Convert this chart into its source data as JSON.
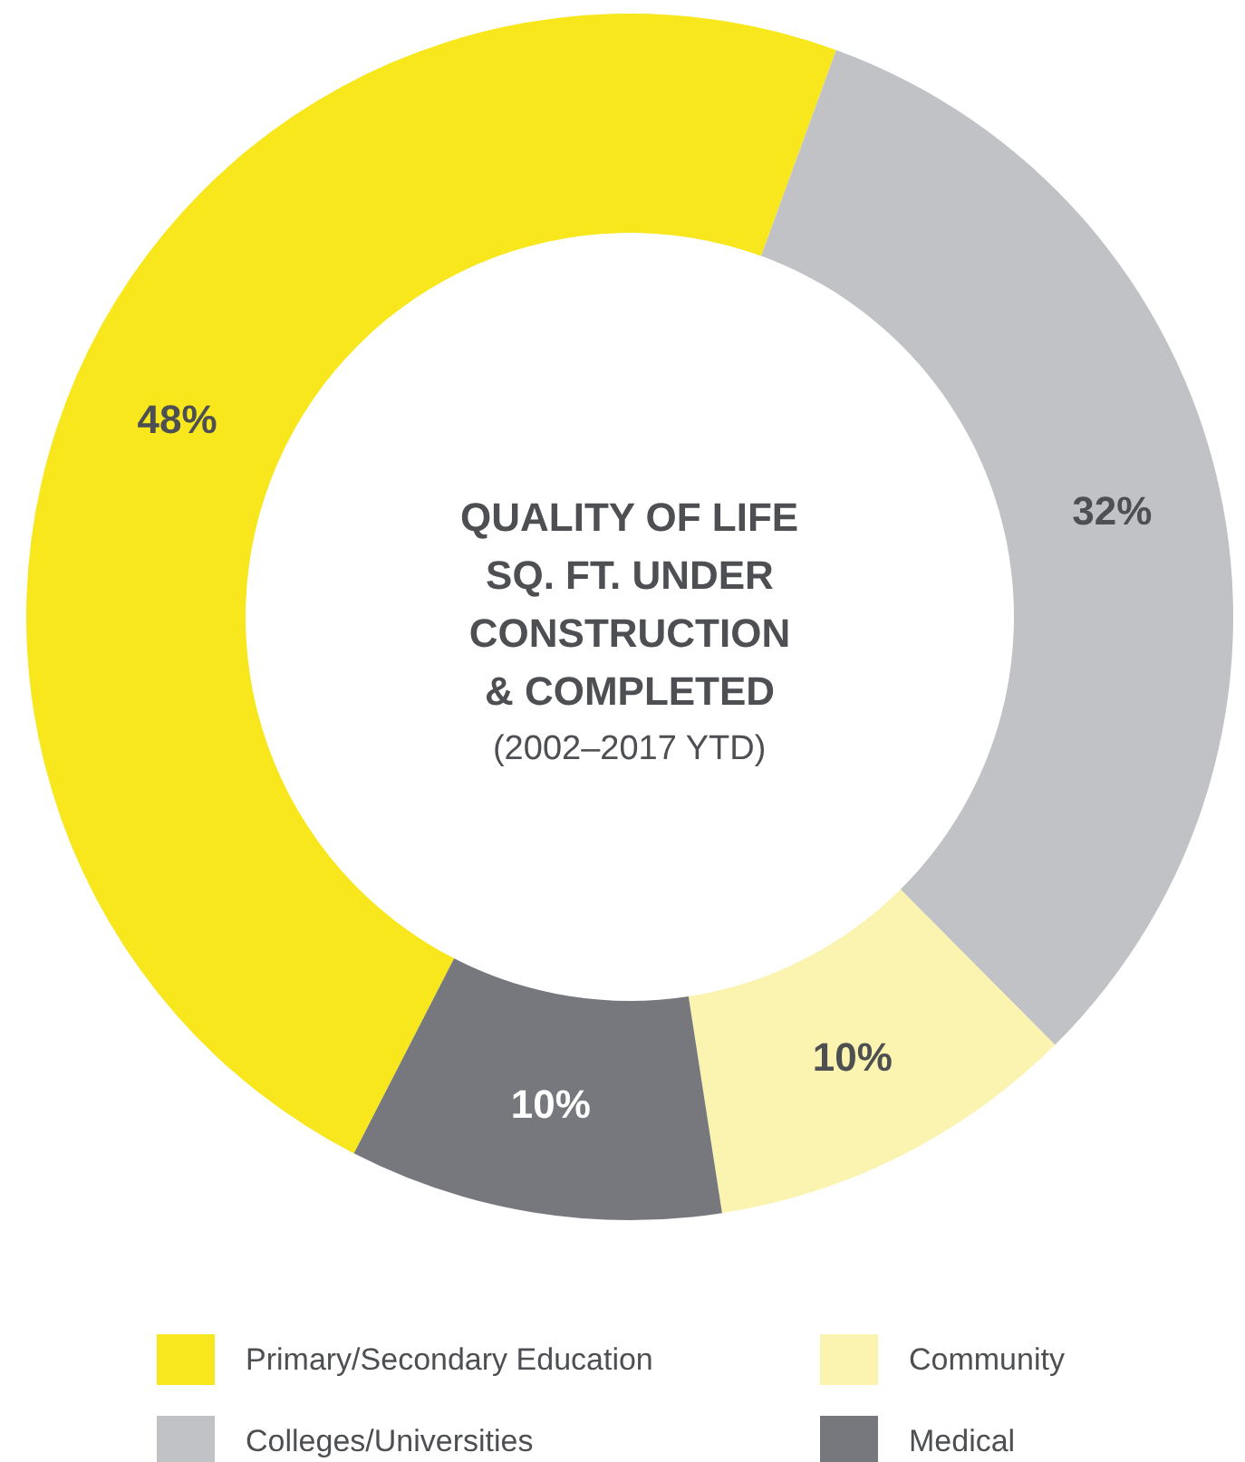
{
  "chart_data": {
    "type": "donut",
    "title": "QUALITY OF LIFE\nSQ. FT. UNDER\nCONSTRUCTION\n& COMPLETED",
    "subtitle": "(2002–2017 YTD)",
    "categories": [
      "Primary/Secondary Education",
      "Colleges/Universities",
      "Community",
      "Medical"
    ],
    "values": [
      48,
      32,
      10,
      10
    ],
    "colors": [
      "#f7e71c",
      "#c1c2c6",
      "#fbf4b0",
      "#76787d"
    ],
    "value_labels": [
      "48%",
      "32%",
      "10%",
      "10%"
    ],
    "legend": "bottom"
  }
}
